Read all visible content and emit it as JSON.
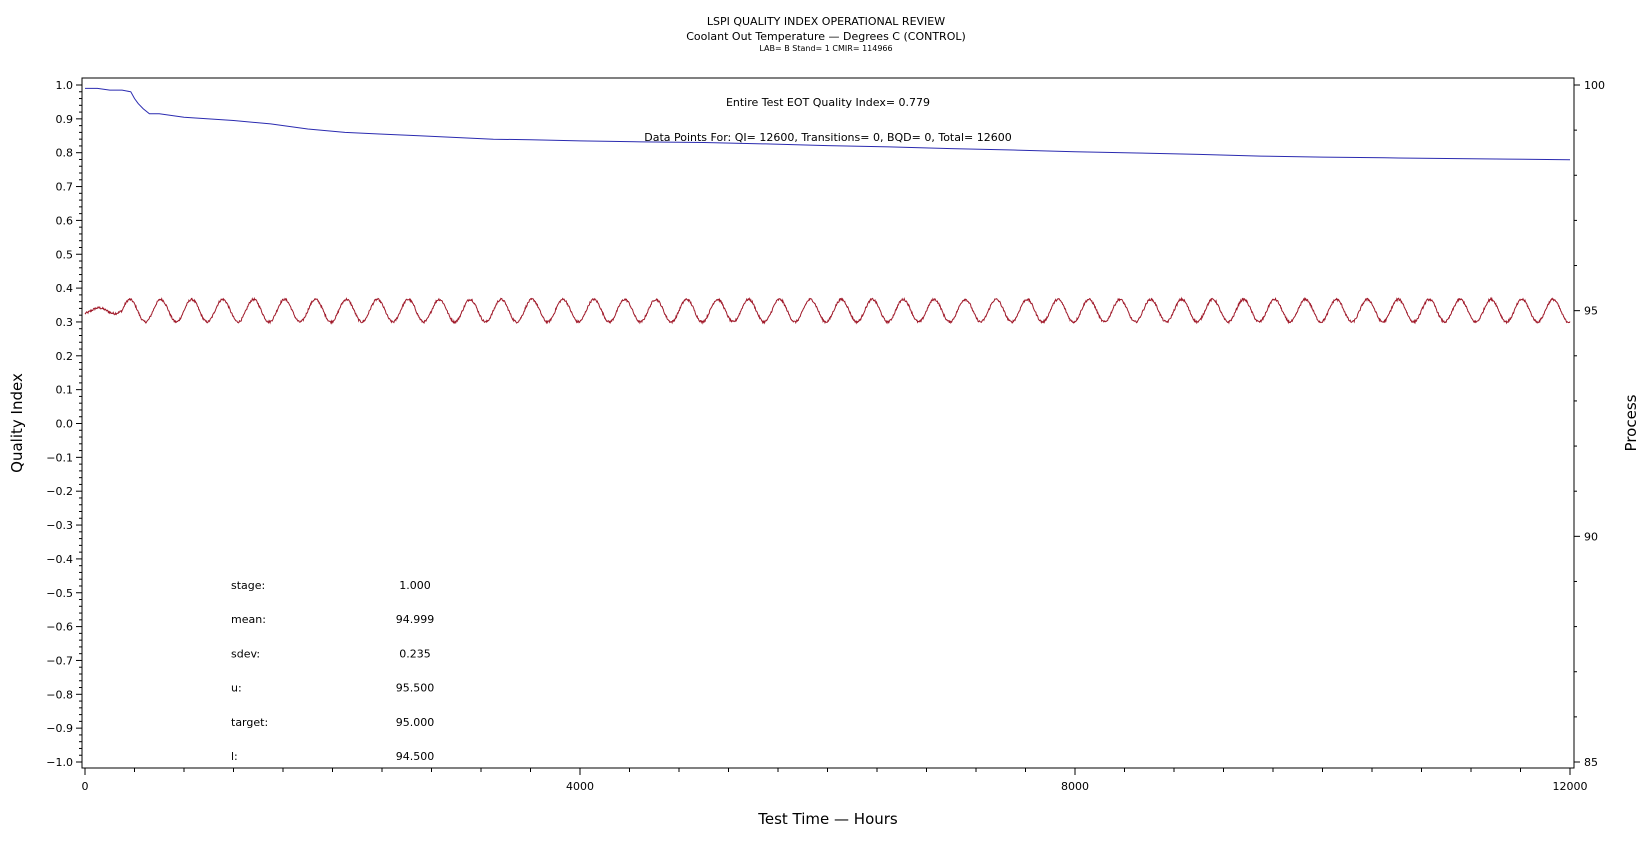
{
  "chart_data": {
    "type": "line",
    "title": "LSPI QUALITY INDEX OPERATIONAL REVIEW",
    "subtitle": "Coolant Out Temperature — Degrees C (CONTROL)",
    "subtitle2": "LAB= B Stand= 1 CMIR= 114966",
    "xlabel": "Test Time — Hours",
    "ylabel": "Quality Index",
    "y2label": "Process",
    "xlim": [
      0,
      12000
    ],
    "ylim": [
      -1.0,
      1.0
    ],
    "y2lim": [
      85,
      100
    ],
    "x_ticks": [
      0,
      4000,
      8000,
      12000
    ],
    "x_tick_labels": [
      "0",
      "4000",
      "8000",
      "12000"
    ],
    "y_ticks": [
      1.0,
      0.9,
      0.8,
      0.7,
      0.6,
      0.5,
      0.4,
      0.3,
      0.2,
      0.1,
      0.0,
      -0.1,
      -0.2,
      -0.3,
      -0.4,
      -0.5,
      -0.6,
      -0.7,
      -0.8,
      -0.9,
      -1.0
    ],
    "y_tick_labels": [
      "1.0",
      "0.9",
      "0.8",
      "0.7",
      "0.6",
      "0.5",
      "0.4",
      "0.3",
      "0.2",
      "0.1",
      "0.0",
      "−0.1",
      "−0.2",
      "−0.3",
      "−0.4",
      "−0.5",
      "−0.6",
      "−0.7",
      "−0.8",
      "−0.9",
      "−1.0"
    ],
    "y2_ticks": [
      100,
      95,
      90,
      85
    ],
    "y2_tick_labels": [
      "100",
      "95",
      "90",
      "85"
    ],
    "annotations": {
      "quality_index": "Entire Test EOT Quality Index=   0.779",
      "data_points": "Data Points For: QI= 12600, Transitions=     0, BQD=     0, Total= 12600"
    },
    "stats": [
      {
        "label": "stage:",
        "value": "1.000"
      },
      {
        "label": "mean:",
        "value": "94.999"
      },
      {
        "label": "sdev:",
        "value": "0.235"
      },
      {
        "label": "u:",
        "value": "95.500"
      },
      {
        "label": "target:",
        "value": "95.000"
      },
      {
        "label": "l:",
        "value": "94.500"
      }
    ],
    "series": [
      {
        "axis": "left",
        "color": "#2b2bb0",
        "x": [
          0,
          100,
          200,
          300,
          370,
          400,
          430,
          470,
          520,
          600,
          800,
          1000,
          1200,
          1500,
          1800,
          2100,
          2400,
          2700,
          3000,
          3300,
          3600,
          4000,
          4500,
          5000,
          5500,
          6000,
          6500,
          7000,
          7500,
          8000,
          8500,
          9000,
          9500,
          10000,
          10500,
          11000,
          11500,
          12000
        ],
        "values": [
          0.99,
          0.99,
          0.985,
          0.985,
          0.98,
          0.96,
          0.945,
          0.93,
          0.915,
          0.915,
          0.905,
          0.9,
          0.895,
          0.885,
          0.87,
          0.86,
          0.855,
          0.85,
          0.845,
          0.84,
          0.838,
          0.835,
          0.832,
          0.83,
          0.826,
          0.821,
          0.817,
          0.812,
          0.808,
          0.803,
          0.799,
          0.795,
          0.79,
          0.787,
          0.785,
          0.783,
          0.781,
          0.779
        ]
      },
      {
        "axis": "right",
        "color": "#a01a2a",
        "pattern": "sinusoidal",
        "x_start": 0,
        "x_end": 12000,
        "baseline": 95.0,
        "amplitude": 0.25,
        "period_hours": 250,
        "oscillation_start_hours": 300
      }
    ]
  }
}
